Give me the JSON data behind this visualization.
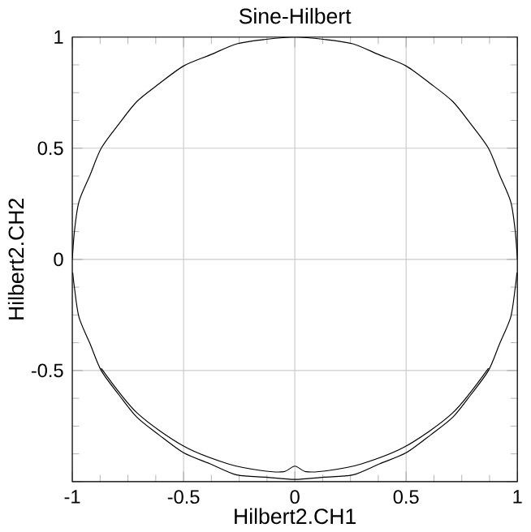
{
  "chart_data": {
    "type": "line",
    "title": "Sine-Hilbert",
    "xlabel": "Hilbert2.CH1",
    "ylabel": "Hilbert2.CH2",
    "xlim": [
      -1,
      1
    ],
    "ylim": [
      -1,
      1
    ],
    "xticks": [
      -1,
      -0.5,
      0,
      0.5,
      1
    ],
    "yticks": [
      {
        "value": -1,
        "label": null
      },
      -0.5,
      0,
      0.5,
      1
    ],
    "grid": true,
    "marker": "none",
    "line_style": "solid",
    "series": [
      {
        "color": "#000000",
        "x": [
          -1,
          -0.99,
          -0.97,
          -0.92,
          -0.87,
          -0.79,
          -0.71,
          -0.61,
          -0.5,
          -0.38,
          -0.26,
          -0.13,
          0,
          0.13,
          0.26,
          0.38,
          0.5,
          0.61,
          0.71,
          0.79,
          0.87,
          0.92,
          0.97,
          0.99,
          1
        ],
        "values": [
          0,
          0.13,
          0.26,
          0.38,
          0.5,
          0.61,
          0.71,
          0.79,
          0.87,
          0.92,
          0.97,
          0.99,
          1,
          0.99,
          0.97,
          0.92,
          0.87,
          0.79,
          0.71,
          0.61,
          0.5,
          0.38,
          0.26,
          0.13,
          0
        ]
      },
      {
        "color": "#000000",
        "x": [
          -0.998,
          -0.99,
          -0.97,
          -0.92,
          -0.87,
          -0.79,
          -0.71,
          -0.61,
          -0.5,
          -0.38,
          -0.26,
          -0.13,
          0,
          0.13,
          0.26,
          0.38,
          0.5,
          0.61,
          0.71,
          0.79,
          0.87,
          0.92,
          0.97,
          0.99,
          0.998
        ],
        "values": [
          -0.06,
          -0.13,
          -0.26,
          -0.38,
          -0.5,
          -0.61,
          -0.71,
          -0.79,
          -0.87,
          -0.92,
          -0.97,
          -0.98,
          -0.99,
          -0.98,
          -0.97,
          -0.92,
          -0.87,
          -0.79,
          -0.71,
          -0.61,
          -0.5,
          -0.38,
          -0.26,
          -0.13,
          -0.06
        ]
      },
      {
        "color": "#000000",
        "x": [
          -0.87,
          -0.71,
          -0.5,
          -0.3,
          -0.15,
          -0.05,
          0,
          0.05,
          0.15,
          0.3,
          0.5,
          0.71,
          0.87
        ],
        "values": [
          -0.49,
          -0.69,
          -0.84,
          -0.92,
          -0.95,
          -0.955,
          -0.93,
          -0.955,
          -0.95,
          -0.92,
          -0.84,
          -0.69,
          -0.49
        ]
      }
    ]
  }
}
